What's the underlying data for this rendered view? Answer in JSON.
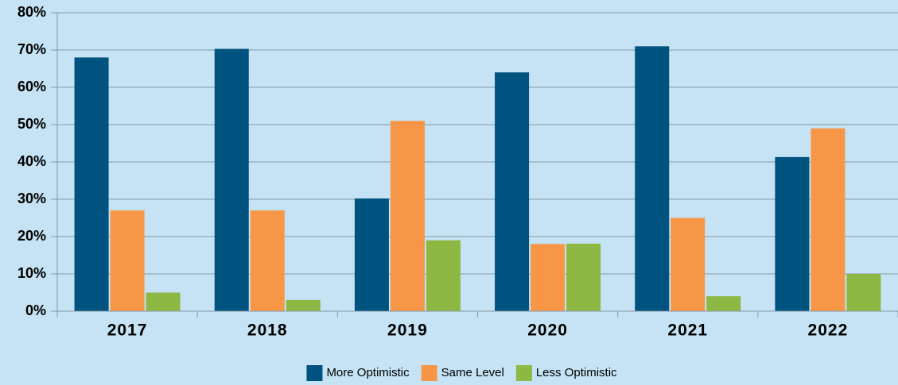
{
  "chart_data": {
    "type": "bar",
    "categories": [
      "2017",
      "2018",
      "2019",
      "2020",
      "2021",
      "2022"
    ],
    "series": [
      {
        "name": "More Optimistic",
        "color": "#00527f",
        "values": [
          68,
          70.3,
          30.2,
          64,
          71,
          41.3
        ]
      },
      {
        "name": "Same Level",
        "color": "#f79646",
        "values": [
          27,
          27,
          51,
          18,
          25,
          49
        ]
      },
      {
        "name": "Less Optimistic",
        "color": "#8db843",
        "values": [
          5,
          3,
          19,
          18.1,
          4,
          10
        ]
      }
    ],
    "ylim": [
      0,
      80
    ],
    "yticks": [
      {
        "value": 0,
        "label": "0%"
      },
      {
        "value": 10,
        "label": "10%"
      },
      {
        "value": 20,
        "label": "20%"
      },
      {
        "value": 30,
        "label": "30%"
      },
      {
        "value": 40,
        "label": "40%"
      },
      {
        "value": 50,
        "label": "50%"
      },
      {
        "value": 60,
        "label": "60%"
      },
      {
        "value": 70,
        "label": "70%"
      },
      {
        "value": 80,
        "label": "80%"
      }
    ],
    "grid": true,
    "legend": "bottom"
  }
}
